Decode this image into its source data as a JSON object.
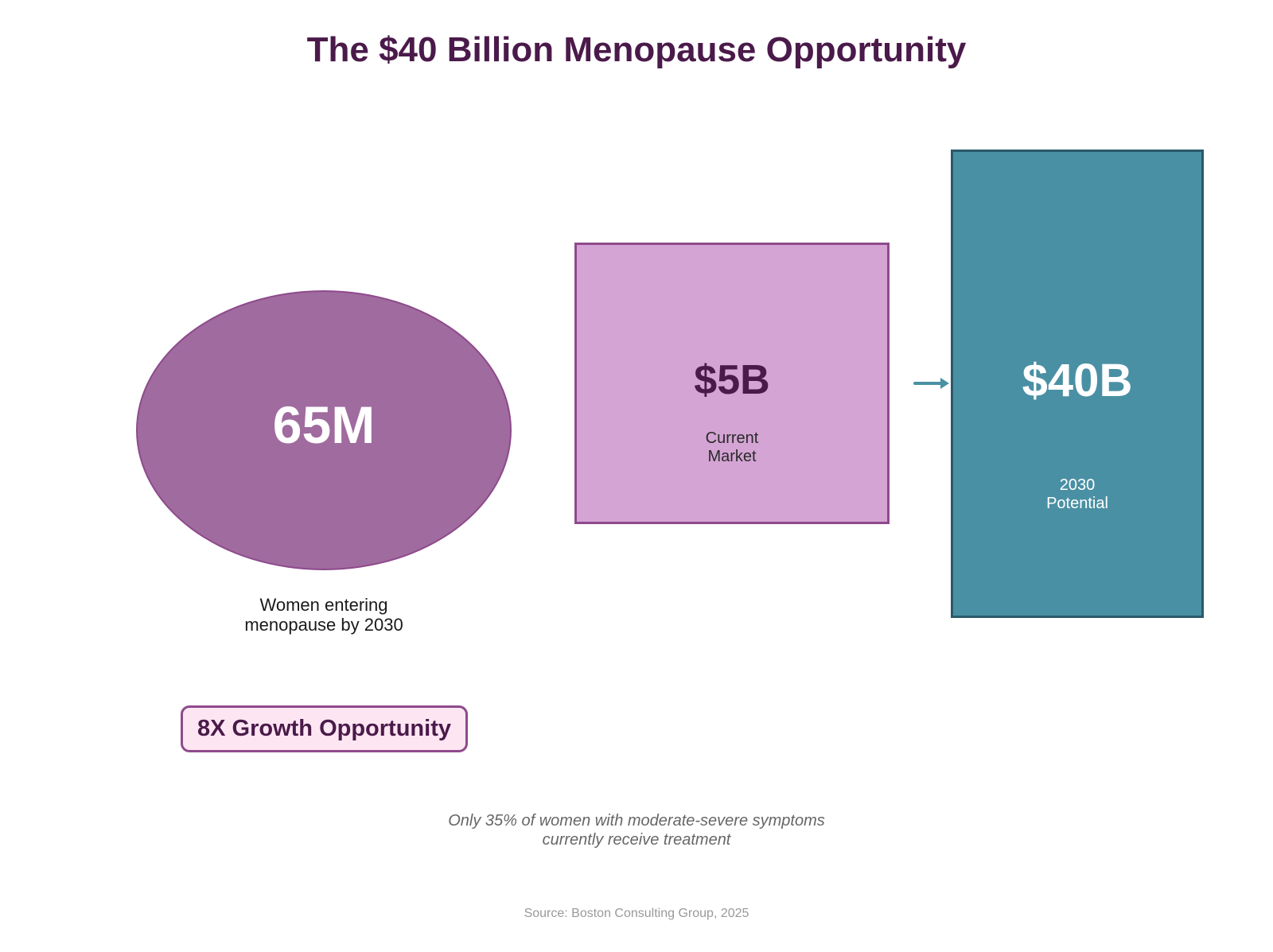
{
  "title": "The $40 Billion Menopause Opportunity",
  "women": {
    "value": "65M",
    "caption": [
      "Women entering",
      "menopause by 2030"
    ]
  },
  "current_market": {
    "value": "$5B",
    "caption": [
      "Current",
      "Market"
    ]
  },
  "potential_market": {
    "value": "$40B",
    "caption": [
      "2030",
      "Potential"
    ]
  },
  "badge": "8X Growth Opportunity",
  "footnote": [
    "Only 35% of women with moderate-severe symptoms",
    "currently receive treatment"
  ],
  "source": "Source: Boston Consulting Group, 2025",
  "colors": {
    "title": "#4a1a4a",
    "ellipse_fill": "#a06b9e",
    "current_fill": "#d4a4d4",
    "current_border": "#8e4a8c",
    "potential_fill": "#4a90a4",
    "potential_border": "#2a5a6a",
    "badge_fill": "#fde6f2",
    "arrow": "#4a90a4"
  },
  "icons": {
    "arrow": "arrow-right-icon"
  }
}
